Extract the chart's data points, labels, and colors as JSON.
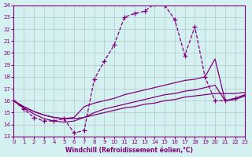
{
  "xlabel": "Windchill (Refroidissement éolien,°C)",
  "bg_color": "#d4f0f0",
  "line_color": "#800080",
  "grid_color": "#b0c8c8",
  "xmin": 0,
  "xmax": 23,
  "ymin": 13,
  "ymax": 24,
  "series1_x": [
    0,
    1,
    2,
    3,
    4,
    5,
    6,
    7,
    8,
    9,
    10,
    11,
    12,
    13,
    14,
    15,
    16,
    17,
    18,
    19,
    20,
    21,
    22,
    23
  ],
  "series1_y": [
    16.0,
    15.3,
    14.6,
    14.3,
    14.3,
    14.5,
    13.3,
    13.5,
    17.8,
    19.3,
    20.7,
    23.0,
    23.3,
    23.5,
    24.1,
    24.0,
    22.8,
    19.8,
    22.2,
    18.0,
    16.0,
    16.0,
    16.2,
    16.5
  ],
  "series2_x": [
    0,
    1,
    2,
    3,
    4,
    5,
    6,
    7,
    8,
    9,
    10,
    11,
    12,
    13,
    14,
    15,
    16,
    17,
    18,
    19,
    20,
    21,
    22,
    23
  ],
  "series2_y": [
    16.0,
    15.5,
    15.1,
    14.8,
    14.6,
    14.5,
    14.6,
    15.5,
    15.8,
    16.0,
    16.2,
    16.5,
    16.7,
    16.9,
    17.1,
    17.3,
    17.5,
    17.7,
    17.8,
    18.0,
    19.5,
    16.0,
    16.2,
    16.5
  ],
  "series3_x": [
    0,
    1,
    2,
    3,
    4,
    5,
    6,
    7,
    8,
    9,
    10,
    11,
    12,
    13,
    14,
    15,
    16,
    17,
    18,
    19,
    20,
    21,
    22,
    23
  ],
  "series3_y": [
    16.0,
    15.4,
    14.9,
    14.5,
    14.3,
    14.2,
    14.3,
    14.6,
    15.0,
    15.3,
    15.5,
    15.7,
    15.9,
    16.1,
    16.3,
    16.5,
    16.6,
    16.8,
    16.9,
    17.1,
    17.3,
    16.0,
    16.1,
    16.4
  ],
  "series4_x": [
    0,
    1,
    2,
    3,
    4,
    5,
    6,
    7,
    8,
    9,
    10,
    11,
    12,
    13,
    14,
    15,
    16,
    17,
    18,
    19,
    20,
    21,
    22,
    23
  ],
  "series4_y": [
    16.0,
    15.5,
    15.1,
    14.8,
    14.6,
    14.5,
    14.5,
    14.6,
    14.8,
    15.0,
    15.2,
    15.4,
    15.5,
    15.7,
    15.8,
    16.0,
    16.1,
    16.3,
    16.4,
    16.5,
    16.6,
    16.6,
    16.6,
    16.7
  ]
}
